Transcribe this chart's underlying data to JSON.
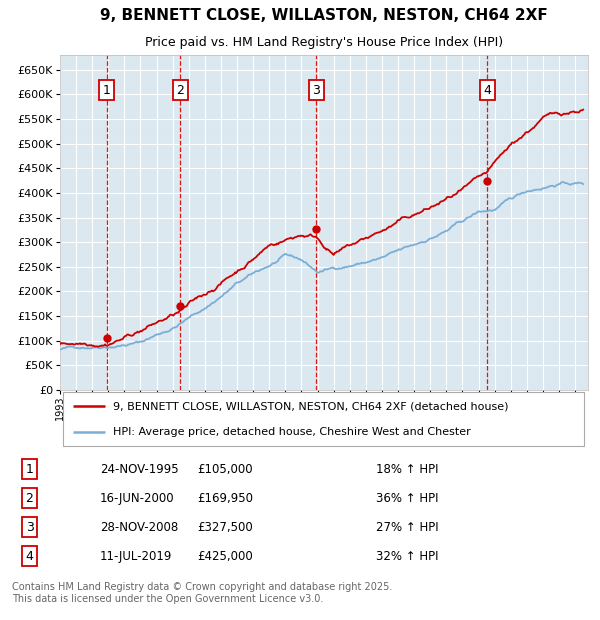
{
  "title": "9, BENNETT CLOSE, WILLASTON, NESTON, CH64 2XF",
  "subtitle": "Price paid vs. HM Land Registry's House Price Index (HPI)",
  "sale_dates_num": [
    1995.9,
    2000.46,
    2008.91,
    2019.53
  ],
  "sale_prices": [
    105000,
    169950,
    327500,
    425000
  ],
  "sale_labels": [
    "1",
    "2",
    "3",
    "4"
  ],
  "sale_info": [
    {
      "label": "1",
      "date": "24-NOV-1995",
      "price": "£105,000",
      "hpi": "18% ↑ HPI"
    },
    {
      "label": "2",
      "date": "16-JUN-2000",
      "price": "£169,950",
      "hpi": "36% ↑ HPI"
    },
    {
      "label": "3",
      "date": "28-NOV-2008",
      "price": "£327,500",
      "hpi": "27% ↑ HPI"
    },
    {
      "label": "4",
      "date": "11-JUL-2019",
      "price": "£425,000",
      "hpi": "32% ↑ HPI"
    }
  ],
  "red_line_label": "9, BENNETT CLOSE, WILLASTON, NESTON, CH64 2XF (detached house)",
  "blue_line_label": "HPI: Average price, detached house, Cheshire West and Chester",
  "footer": "Contains HM Land Registry data © Crown copyright and database right 2025.\nThis data is licensed under the Open Government Licence v3.0.",
  "ylim": [
    0,
    680000
  ],
  "yticks": [
    0,
    50000,
    100000,
    150000,
    200000,
    250000,
    300000,
    350000,
    400000,
    450000,
    500000,
    550000,
    600000,
    650000
  ],
  "xlim_start": 1993.0,
  "xlim_end": 2025.8,
  "background_color": "#dce8f0",
  "red_color": "#cc0000",
  "blue_color": "#7aaed6",
  "grid_color": "#ffffff",
  "vline_color": "#dd0000"
}
